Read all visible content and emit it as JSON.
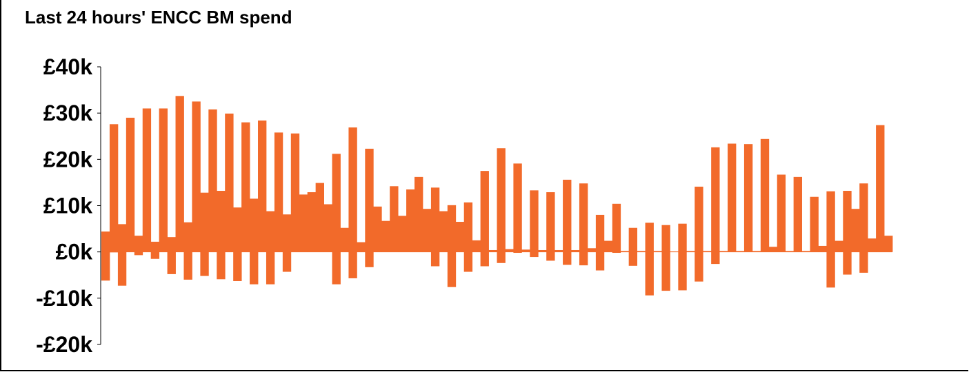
{
  "chart_data": {
    "type": "bar",
    "title": "Last 24 hours' ENCC BM spend",
    "xlabel": "",
    "ylabel": "",
    "ylim": [
      -20000,
      40000
    ],
    "yticks": [
      {
        "value": 40000,
        "label": "£40k"
      },
      {
        "value": 30000,
        "label": "£30k"
      },
      {
        "value": 20000,
        "label": "£20k"
      },
      {
        "value": 10000,
        "label": "£10k"
      },
      {
        "value": 0,
        "label": "£0k"
      },
      {
        "value": -10000,
        "label": "-£10k"
      },
      {
        "value": -20000,
        "label": "-£20k"
      }
    ],
    "grid": false,
    "bar_color": "#f26a2a",
    "series": [
      {
        "values": [
          4400,
          27600,
          6000,
          29000,
          3500,
          31000,
          2200,
          31000,
          3200,
          33700,
          6400,
          32500,
          12800,
          30800,
          13200,
          29900,
          9600,
          28000,
          11500,
          28400,
          8800,
          25800,
          8100,
          25600,
          12400,
          12900,
          14900,
          10300,
          21200,
          5200,
          26900,
          2100,
          22300,
          9800,
          6700,
          14200,
          7800,
          13500,
          16200,
          9300,
          13900,
          8800,
          10100,
          6500,
          10700,
          2500,
          17500,
          400,
          22400,
          600,
          19100,
          500,
          13300,
          400,
          12900,
          400,
          15600,
          400,
          14800,
          800,
          8000,
          2400,
          10400,
          200,
          5200,
          200,
          6300,
          200,
          5800,
          100,
          6100,
          200,
          14100,
          200,
          22600,
          200,
          23400,
          200,
          23300,
          200,
          24400,
          1100,
          16700,
          200,
          16200,
          200,
          11900,
          1300,
          13100,
          2400,
          13200,
          9300,
          14800,
          2900,
          27400,
          3500
        ]
      },
      {
        "values": [
          -6200,
          -100,
          -7300,
          0,
          -700,
          0,
          -1500,
          0,
          -4800,
          0,
          -6000,
          0,
          -5200,
          0,
          -5900,
          0,
          -6300,
          0,
          -7000,
          0,
          -7000,
          0,
          -4300,
          0,
          0,
          0,
          0,
          0,
          -7000,
          0,
          -5700,
          0,
          -3300,
          0,
          0,
          0,
          0,
          0,
          0,
          0,
          -3100,
          0,
          -7600,
          0,
          -4300,
          0,
          -3100,
          0,
          -2400,
          0,
          -200,
          0,
          -1100,
          0,
          -1900,
          0,
          -2800,
          0,
          -2900,
          0,
          -4000,
          0,
          -200,
          0,
          -3000,
          0,
          -9400,
          0,
          -8400,
          0,
          -8300,
          0,
          -6400,
          0,
          -2600,
          0,
          0,
          0,
          0,
          0,
          0,
          0,
          0,
          0,
          0,
          0,
          0,
          0,
          -7700,
          0,
          -4900,
          0,
          -4500,
          0,
          0,
          0,
          0,
          0,
          0,
          0
        ]
      }
    ]
  }
}
